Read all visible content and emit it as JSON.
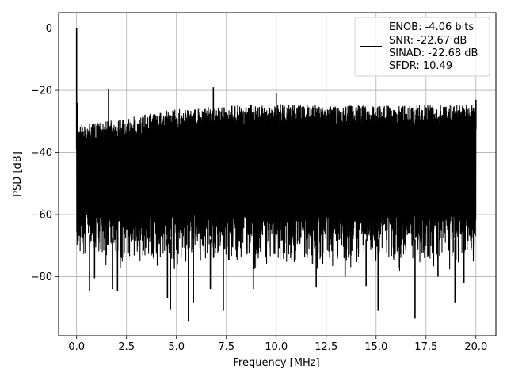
{
  "chart_data": {
    "type": "line",
    "xlabel": "Frequency [MHz]",
    "ylabel": "PSD [dB]",
    "xlim": [
      -0.9,
      21.0
    ],
    "ylim": [
      -99,
      5
    ],
    "x_ticks": [
      0.0,
      2.5,
      5.0,
      7.5,
      10.0,
      12.5,
      15.0,
      17.5,
      20.0
    ],
    "x_tick_labels": [
      "0.0",
      "2.5",
      "5.0",
      "7.5",
      "10.0",
      "12.5",
      "15.0",
      "17.5",
      "20.0"
    ],
    "y_ticks": [
      0,
      -20,
      -40,
      -60,
      -80
    ],
    "y_tick_labels": [
      "0",
      "−20",
      "−40",
      "−60",
      "−80"
    ],
    "grid": true,
    "legend_position": "top-right",
    "legend": {
      "lines": [
        "ENOB: -4.06 bits",
        "SNR: -22.67 dB",
        "SINAD: -22.68 dB",
        "SFDR: 10.49"
      ]
    },
    "series": [
      {
        "color": "#000000",
        "x_range": [
          0.0,
          20.0
        ],
        "envelope_upper": [
          [
            0.0,
            -31
          ],
          [
            0.5,
            -31
          ],
          [
            2.5,
            -29
          ],
          [
            5.0,
            -26
          ],
          [
            7.5,
            -25
          ],
          [
            10.0,
            -24.5
          ],
          [
            15.0,
            -25
          ],
          [
            20.0,
            -24.5
          ]
        ],
        "envelope_lower": [
          [
            0.0,
            -70
          ],
          [
            2.5,
            -72
          ],
          [
            5.0,
            -72
          ],
          [
            10.0,
            -72
          ],
          [
            15.0,
            -72
          ],
          [
            20.0,
            -72
          ]
        ],
        "spikes": [
          {
            "x": 0.0,
            "y": 0
          },
          {
            "x": 0.05,
            "y": -24
          },
          {
            "x": 1.6,
            "y": -19.5
          },
          {
            "x": 6.85,
            "y": -19
          },
          {
            "x": 10.0,
            "y": -21
          },
          {
            "x": 20.0,
            "y": -23
          }
        ],
        "dips": [
          {
            "x": 0.65,
            "y": -84.5
          },
          {
            "x": 0.9,
            "y": -80.5
          },
          {
            "x": 1.8,
            "y": -84
          },
          {
            "x": 2.05,
            "y": -84.5
          },
          {
            "x": 4.55,
            "y": -87
          },
          {
            "x": 4.7,
            "y": -90.5
          },
          {
            "x": 5.6,
            "y": -94.5
          },
          {
            "x": 5.85,
            "y": -88.5
          },
          {
            "x": 6.7,
            "y": -84
          },
          {
            "x": 7.35,
            "y": -91
          },
          {
            "x": 8.85,
            "y": -84
          },
          {
            "x": 12.0,
            "y": -83.5
          },
          {
            "x": 13.45,
            "y": -80
          },
          {
            "x": 14.5,
            "y": -83
          },
          {
            "x": 15.1,
            "y": -91
          },
          {
            "x": 16.95,
            "y": -93.5
          },
          {
            "x": 18.1,
            "y": -80
          },
          {
            "x": 18.95,
            "y": -88.5
          },
          {
            "x": 19.4,
            "y": -82
          }
        ]
      }
    ]
  }
}
